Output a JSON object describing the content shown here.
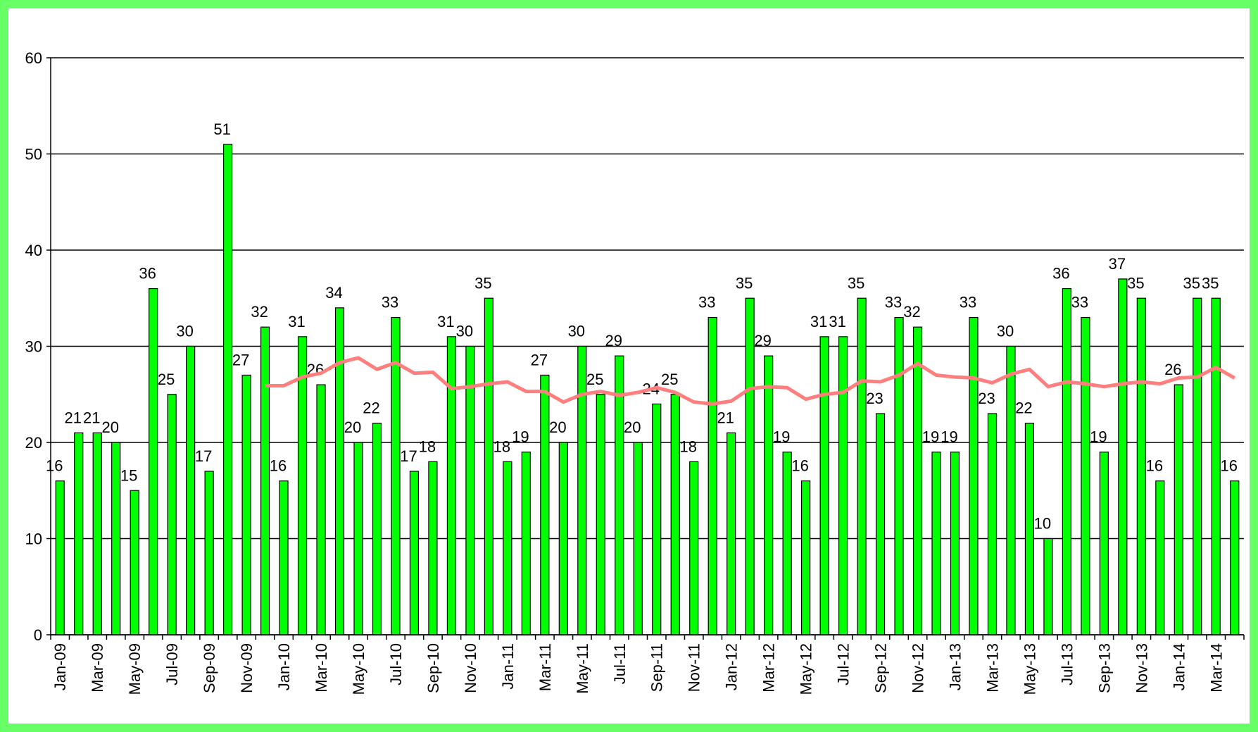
{
  "chart_data": {
    "type": "bar",
    "categories": [
      "Jan-09",
      null,
      "Mar-09",
      null,
      "May-09",
      null,
      "Jul-09",
      null,
      "Sep-09",
      null,
      "Nov-09",
      null,
      "Jan-10",
      null,
      "Mar-10",
      null,
      "May-10",
      null,
      "Jul-10",
      null,
      "Sep-10",
      null,
      "Nov-10",
      null,
      "Jan-11",
      null,
      "Mar-11",
      null,
      "May-11",
      null,
      "Jul-11",
      null,
      "Sep-11",
      null,
      "Nov-11",
      null,
      "Jan-12",
      null,
      "Mar-12",
      null,
      "May-12",
      null,
      "Jul-12",
      null,
      "Sep-12",
      null,
      "Nov-12",
      null,
      "Jan-13",
      null,
      "Mar-13",
      null,
      "May-13",
      null,
      "Jul-13",
      null,
      "Sep-13",
      null,
      "Nov-13",
      null,
      "Jan-14",
      null,
      "Mar-14",
      null
    ],
    "series": [
      {
        "type": "bar",
        "color": "#00ff00",
        "values": [
          16,
          21,
          21,
          20,
          15,
          36,
          25,
          30,
          17,
          51,
          27,
          32,
          16,
          31,
          26,
          34,
          20,
          22,
          33,
          17,
          18,
          31,
          30,
          35,
          18,
          19,
          27,
          20,
          30,
          25,
          29,
          20,
          24,
          25,
          18,
          33,
          21,
          35,
          29,
          19,
          16,
          31,
          31,
          35,
          23,
          33,
          32,
          19,
          19,
          33,
          23,
          30,
          22,
          10,
          36,
          33,
          19,
          37,
          35,
          16,
          26,
          35,
          35,
          16
        ]
      },
      {
        "type": "line",
        "color": "#ff7f7f",
        "values": [
          null,
          null,
          null,
          null,
          null,
          null,
          null,
          null,
          null,
          null,
          null,
          25.9,
          25.9,
          26.8,
          27.2,
          28.3,
          28.8,
          27.6,
          28.3,
          27.2,
          27.3,
          25.6,
          25.8,
          26.1,
          26.3,
          25.3,
          25.3,
          24.2,
          25.0,
          25.3,
          24.9,
          25.2,
          25.7,
          25.2,
          24.2,
          24.0,
          24.3,
          25.6,
          25.8,
          25.7,
          24.5,
          25.0,
          25.2,
          26.4,
          26.3,
          27.0,
          28.2,
          27.0,
          26.8,
          26.7,
          26.2,
          27.1,
          27.6,
          25.8,
          26.3,
          26.1,
          25.8,
          26.1,
          26.3,
          26.1,
          26.7,
          26.8,
          27.8,
          26.7
        ]
      }
    ],
    "ylim": [
      0,
      60
    ],
    "yticks": [
      0,
      10,
      20,
      30,
      40,
      50,
      60
    ],
    "grid": true
  }
}
